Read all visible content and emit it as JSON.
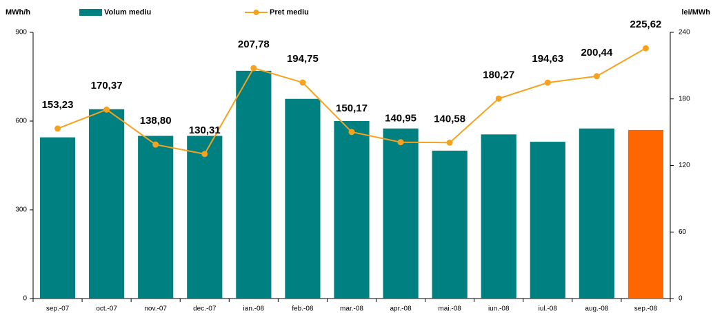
{
  "chart_data": {
    "type": "bar",
    "y_label": "MWh/h",
    "y2_label": "lei/MWh",
    "categories": [
      "sep.-07",
      "oct.-07",
      "nov.-07",
      "dec.-07",
      "ian.-08",
      "feb.-08",
      "mar.-08",
      "apr.-08",
      "mai.-08",
      "iun.-08",
      "iul.-08",
      "aug.-08",
      "sep.-08"
    ],
    "series": [
      {
        "name": "Volum mediu",
        "type": "bar",
        "color": "#008080",
        "colors": [
          "#008080",
          "#008080",
          "#008080",
          "#008080",
          "#008080",
          "#008080",
          "#008080",
          "#008080",
          "#008080",
          "#008080",
          "#008080",
          "#008080",
          "#ff6600"
        ],
        "values": [
          545,
          640,
          550,
          550,
          770,
          675,
          600,
          575,
          500,
          555,
          530,
          575,
          570
        ]
      },
      {
        "name": "Pret mediu",
        "type": "line",
        "axis": "y2",
        "color": "#f5a21e",
        "values": [
          153.23,
          170.37,
          138.8,
          130.31,
          207.78,
          194.75,
          150.17,
          140.95,
          140.58,
          180.27,
          194.63,
          200.44,
          225.62
        ],
        "value_labels": [
          "153,23",
          "170,37",
          "138,80",
          "130,31",
          "207,78",
          "194,75",
          "150,17",
          "140,95",
          "140,58",
          "180,27",
          "194,63",
          "200,44",
          "225,62"
        ]
      }
    ],
    "ylim": [
      0,
      900
    ],
    "yticks": [
      0,
      300,
      600,
      900
    ],
    "y2lim": [
      0,
      240
    ],
    "y2ticks": [
      0,
      60,
      120,
      180,
      240
    ]
  }
}
